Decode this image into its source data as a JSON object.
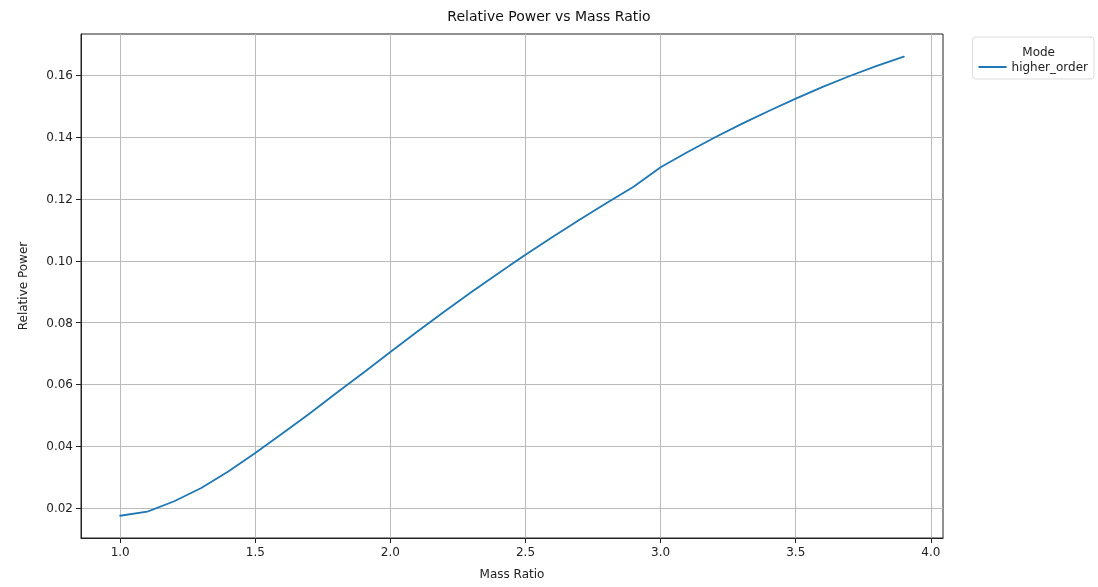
{
  "chart_data": {
    "type": "line",
    "title": "Relative Power vs Mass Ratio",
    "xlabel": "Mass Ratio",
    "ylabel": "Relative Power",
    "legend_title": "Mode",
    "x": [
      1.0,
      1.1,
      1.2,
      1.3,
      1.4,
      1.5,
      1.6,
      1.7,
      1.8,
      1.9,
      2.0,
      2.1,
      2.2,
      2.3,
      2.4,
      2.5,
      2.6,
      2.7,
      2.8,
      2.9,
      3.0,
      3.1,
      3.2,
      3.3,
      3.4,
      3.5,
      3.6,
      3.7,
      3.8,
      3.9
    ],
    "series": [
      {
        "name": "higher_order",
        "color": "#1f77b4",
        "values": [
          0.0175,
          0.0188,
          0.0222,
          0.0265,
          0.0318,
          0.0378,
          0.0441,
          0.0505,
          0.0572,
          0.0638,
          0.0705,
          0.0771,
          0.0836,
          0.0899,
          0.096,
          0.102,
          0.1077,
          0.1133,
          0.1187,
          0.124,
          0.1303,
          0.1352,
          0.1399,
          0.1443,
          0.1485,
          0.1525,
          0.1563,
          0.1598,
          0.1631,
          0.1661
        ]
      }
    ],
    "xlim": [
      0.855,
      4.045
    ],
    "xticks": [
      {
        "value": 1,
        "label": "1.0"
      },
      1.5,
      {
        "value": 2,
        "label": "2.0"
      },
      2.5,
      {
        "value": 3,
        "label": "3.0"
      },
      3.5,
      {
        "value": 4,
        "label": "4.0"
      }
    ],
    "ylim": [
      0.0103,
      0.1734
    ],
    "yticks": [
      0.02,
      0.04,
      0.06,
      0.08,
      {
        "value": 0.1,
        "label": "0.10"
      },
      0.12,
      0.14,
      0.16
    ],
    "grid": true,
    "legend": "top right",
    "marker": "none",
    "line_style": "solid"
  }
}
